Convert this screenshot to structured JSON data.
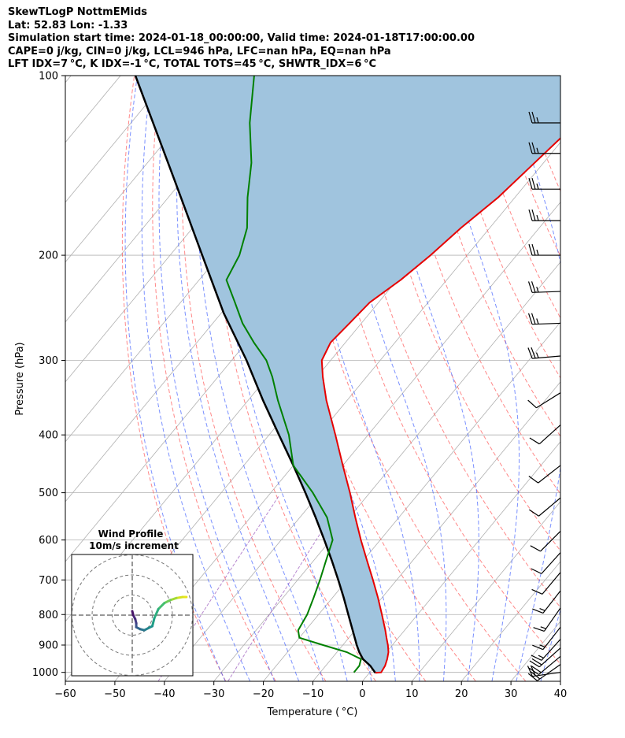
{
  "header": {
    "line1": "SkewTLogP NottmEMids",
    "line2": "Lat: 52.83   Lon: -1.33",
    "line3": "Simulation start time: 2024-01-18_00:00:00, Valid time: 2024-01-18T17:00:00.00",
    "line4": "CAPE=0 j/kg, CIN=0 j/kg, LCL=946 hPa, LFC=nan hPa, EQ=nan hPa",
    "line5": "LFT IDX=7 °C, K IDX=-1 °C, TOTAL TOTS=45 °C, SHWTR_IDX=6 °C"
  },
  "inset": {
    "title": "Wind Profile",
    "subtitle": "10m/s increment"
  },
  "chart_data": {
    "type": "line",
    "xlabel": "Temperature ( °C)",
    "ylabel": "Pressure (hPa)",
    "xlim": [
      -60,
      40
    ],
    "ylim": [
      1035,
      100
    ],
    "yscale": "log",
    "skew": true,
    "grid": true,
    "x_ticks": [
      -60,
      -50,
      -40,
      -30,
      -20,
      -10,
      0,
      10,
      20,
      30,
      40
    ],
    "y_ticks": [
      100,
      200,
      300,
      400,
      500,
      600,
      700,
      800,
      900,
      1000
    ],
    "colors": {
      "temperature": "#e60000",
      "dewpoint": "#008000",
      "parcel": "#000000",
      "shade": "#a0c4de",
      "dry_adiabat": "#ff5555",
      "moist_adiabat": "#3355ff",
      "mixing_ratio": "#9955bb",
      "grid": "#b0b0b0"
    },
    "series": [
      {
        "key": "temperature",
        "p": [
          1002,
          1000,
          975,
          950,
          925,
          900,
          875,
          850,
          800,
          750,
          700,
          650,
          600,
          550,
          500,
          450,
          400,
          350,
          320,
          300,
          280,
          260,
          240,
          220,
          200,
          180,
          160,
          140,
          120,
          100
        ],
        "t": [
          1.2,
          2.3,
          2.0,
          1.3,
          0.4,
          -0.9,
          -2.4,
          -3.9,
          -7.2,
          -10.8,
          -14.8,
          -19.2,
          -23.9,
          -28.8,
          -34.0,
          -40.0,
          -46.6,
          -54.2,
          -58.8,
          -61.8,
          -63.0,
          -62.4,
          -61.8,
          -59.3,
          -57.4,
          -55.8,
          -53.4,
          -51.8,
          -50.0,
          -49.5
        ]
      },
      {
        "key": "dewpoint",
        "p": [
          1000,
          975,
          950,
          925,
          900,
          875,
          850,
          800,
          750,
          700,
          650,
          600,
          550,
          500,
          450,
          400,
          350,
          320,
          300,
          280,
          260,
          240,
          220,
          200,
          180,
          160,
          140,
          120,
          100
        ],
        "t": [
          -3.2,
          -3.2,
          -4.0,
          -8.0,
          -14.0,
          -20.0,
          -21.5,
          -22.3,
          -23.8,
          -25.5,
          -27.5,
          -29.6,
          -34.5,
          -41.5,
          -50.0,
          -56.0,
          -64.0,
          -69.0,
          -73.0,
          -78.5,
          -84.0,
          -89.0,
          -94.5,
          -96.0,
          -99.0,
          -104.0,
          -109.0,
          -116.0,
          -123.0
        ]
      },
      {
        "key": "parcel",
        "p": [
          1002,
          975,
          950,
          925,
          900,
          850,
          800,
          750,
          700,
          650,
          600,
          550,
          500,
          450,
          400,
          350,
          300,
          250,
          200,
          150,
          100
        ],
        "t": [
          1.2,
          -1.0,
          -3.6,
          -5.5,
          -7.2,
          -10.5,
          -14.0,
          -17.7,
          -21.8,
          -26.3,
          -31.3,
          -36.8,
          -43.0,
          -50.0,
          -58.0,
          -67.0,
          -77.0,
          -89.5,
          -103.5,
          -121.5,
          -147.0
        ]
      }
    ],
    "wind_barbs": [
      {
        "p": 1000,
        "kt": 20,
        "dir": 262
      },
      {
        "p": 970,
        "kt": 20,
        "dir": 235
      },
      {
        "p": 940,
        "kt": 20,
        "dir": 230
      },
      {
        "p": 910,
        "kt": 20,
        "dir": 228
      },
      {
        "p": 880,
        "kt": 15,
        "dir": 222
      },
      {
        "p": 840,
        "kt": 15,
        "dir": 218
      },
      {
        "p": 780,
        "kt": 15,
        "dir": 215
      },
      {
        "p": 730,
        "kt": 15,
        "dir": 218
      },
      {
        "p": 680,
        "kt": 10,
        "dir": 220
      },
      {
        "p": 630,
        "kt": 10,
        "dir": 222
      },
      {
        "p": 580,
        "kt": 10,
        "dir": 225
      },
      {
        "p": 510,
        "kt": 10,
        "dir": 230
      },
      {
        "p": 450,
        "kt": 10,
        "dir": 232
      },
      {
        "p": 385,
        "kt": 10,
        "dir": 228
      },
      {
        "p": 340,
        "kt": 10,
        "dir": 238
      },
      {
        "p": 295,
        "kt": 25,
        "dir": 265
      },
      {
        "p": 260,
        "kt": 25,
        "dir": 268
      },
      {
        "p": 230,
        "kt": 25,
        "dir": 268
      },
      {
        "p": 200,
        "kt": 25,
        "dir": 270
      },
      {
        "p": 175,
        "kt": 25,
        "dir": 270
      },
      {
        "p": 155,
        "kt": 25,
        "dir": 270
      },
      {
        "p": 135,
        "kt": 25,
        "dir": 270
      },
      {
        "p": 120,
        "kt": 25,
        "dir": 270
      }
    ],
    "hodograph": {
      "rings": [
        10,
        20,
        30
      ],
      "points": [
        [
          27,
          9
        ],
        [
          25,
          9
        ],
        [
          22,
          8.5
        ],
        [
          19,
          7.5
        ],
        [
          16,
          6
        ],
        [
          13,
          3
        ],
        [
          11,
          -1.5
        ],
        [
          10,
          -5.5
        ],
        [
          8,
          -6.5
        ],
        [
          6,
          -7.5
        ],
        [
          4,
          -7
        ],
        [
          2,
          -6
        ],
        [
          2,
          -4
        ],
        [
          1.5,
          -2
        ],
        [
          0.5,
          0
        ],
        [
          0,
          2
        ]
      ]
    }
  }
}
